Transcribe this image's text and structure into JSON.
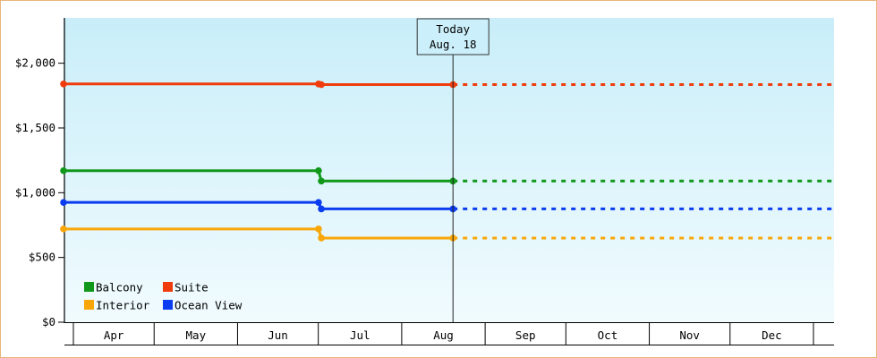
{
  "chart_data": {
    "type": "line",
    "title": "",
    "xlabel": "",
    "ylabel": "",
    "ylim": [
      0,
      2350
    ],
    "y_ticks": [
      0,
      500,
      1000,
      1500,
      2000
    ],
    "y_tick_labels": [
      "$0",
      "$500",
      "$1,000",
      "$1,500",
      "$2,000"
    ],
    "categories": [
      "Apr",
      "May",
      "Jun",
      "Jul",
      "Aug",
      "Sep",
      "Oct",
      "Nov",
      "Dec"
    ],
    "today_marker": {
      "line1": "Today",
      "line2": "Aug. 18",
      "date": "2023-08-18"
    },
    "x_start": "2023-04-01",
    "x_end": "2024-01-01",
    "grid": false,
    "legend_position": "bottom-left",
    "series": [
      {
        "name": "Balcony",
        "color": "#11981b",
        "points": [
          [
            "2023-04-01",
            1170
          ],
          [
            "2023-07-01",
            1170
          ],
          [
            "2023-07-02",
            1090
          ],
          [
            "2023-08-18",
            1090
          ]
        ],
        "projection": 1090
      },
      {
        "name": "Suite",
        "color": "#f03c0c",
        "points": [
          [
            "2023-04-01",
            1840
          ],
          [
            "2023-07-01",
            1840
          ],
          [
            "2023-07-02",
            1835
          ],
          [
            "2023-08-18",
            1835
          ]
        ],
        "projection": 1835
      },
      {
        "name": "Interior",
        "color": "#f8a608",
        "points": [
          [
            "2023-04-01",
            720
          ],
          [
            "2023-07-01",
            720
          ],
          [
            "2023-07-02",
            650
          ],
          [
            "2023-08-18",
            650
          ]
        ],
        "projection": 650
      },
      {
        "name": "Ocean View",
        "color": "#0b3df0",
        "points": [
          [
            "2023-04-01",
            925
          ],
          [
            "2023-07-01",
            925
          ],
          [
            "2023-07-02",
            875
          ],
          [
            "2023-08-18",
            875
          ]
        ],
        "projection": 875
      }
    ]
  }
}
